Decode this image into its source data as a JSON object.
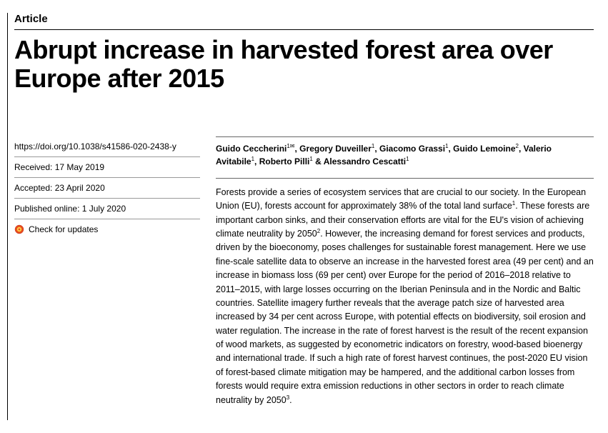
{
  "article_label": "Article",
  "title": "Abrupt increase in harvested forest area over Europe after 2015",
  "doi": "https://doi.org/10.1038/s41586-020-2438-y",
  "received": "Received: 17 May 2019",
  "accepted": "Accepted: 23 April 2020",
  "published": "Published online: 1 July 2020",
  "check_updates": "Check for updates",
  "authors_html": "Guido Ceccherini<sup>1✉</sup>, Gregory Duveiller<sup>1</sup>, Giacomo Grassi<sup>1</sup>, Guido Lemoine<sup>2</sup>, Valerio Avitabile<sup>1</sup>, Roberto Pilli<sup>1</sup> & Alessandro Cescatti<sup>1</sup>",
  "abstract_html": "Forests provide a series of ecosystem services that are crucial to our society. In the European Union (EU), forests account for approximately 38% of the total land surface<sup>1</sup>. These forests are important carbon sinks, and their conservation efforts are vital for the EU's vision of achieving climate neutrality by 2050<sup>2</sup>. However, the increasing demand for forest services and products, driven by the bioeconomy, poses challenges for sustainable forest management. Here we use fine-scale satellite data to observe an increase in the harvested forest area (49 per cent) and an increase in biomass loss (69 per cent) over Europe for the period of 2016–2018 relative to 2011–2015, with large losses occurring on the Iberian Peninsula and in the Nordic and Baltic countries. Satellite imagery further reveals that the average patch size of harvested area increased by 34 per cent across Europe, with potential effects on biodiversity, soil erosion and water regulation. The increase in the rate of forest harvest is the result of the recent expansion of wood markets, as suggested by econometric indicators on forestry, wood-based bioenergy and international trade. If such a high rate of forest harvest continues, the post-2020 EU vision of forest-based climate mitigation may be hampered, and the additional carbon losses from forests would require extra emission reductions in other sectors in order to reach climate neutrality by 2050<sup>3</sup>.",
  "colors": {
    "text": "#000000",
    "background": "#ffffff",
    "rule": "#000000",
    "subrule": "#999999"
  }
}
